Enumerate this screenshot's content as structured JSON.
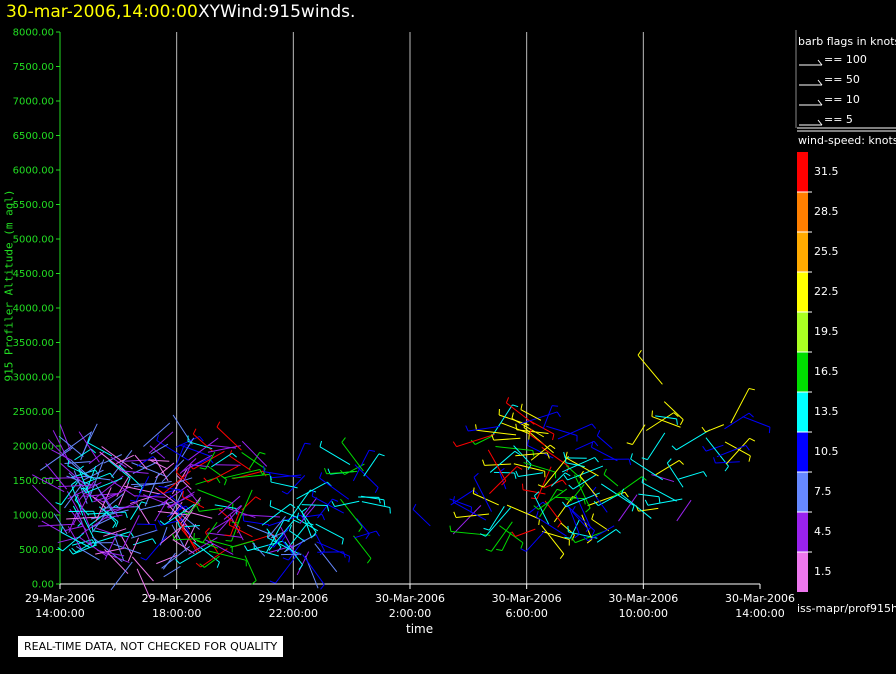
{
  "header": {
    "datetime": "30-mar-2006,14:00:00",
    "product": "XYWind:915winds."
  },
  "footer": {
    "qc_notice": "REAL-TIME DATA, NOT CHECKED FOR QUALITY",
    "source_path": "iss-mapr/prof915h"
  },
  "barb_legend": {
    "title": "barb flags in knots",
    "entries": [
      {
        "label": "== 100",
        "knots": 100
      },
      {
        "label": "== 50",
        "knots": 50
      },
      {
        "label": "== 10",
        "knots": 10
      },
      {
        "label": "== 5",
        "knots": 5
      }
    ]
  },
  "colorbar": {
    "title": "wind-speed: knots",
    "bins": [
      {
        "label": "31.5",
        "color": "#ff0000"
      },
      {
        "label": "28.5",
        "color": "#ff7f00"
      },
      {
        "label": "25.5",
        "color": "#ffaa00"
      },
      {
        "label": "22.5",
        "color": "#ffff00"
      },
      {
        "label": "19.5",
        "color": "#aaff22"
      },
      {
        "label": "16.5",
        "color": "#00dd00"
      },
      {
        "label": "13.5",
        "color": "#00ffff"
      },
      {
        "label": "10.5",
        "color": "#0000ff"
      },
      {
        "label": "7.5",
        "color": "#6688ff"
      },
      {
        "label": "4.5",
        "color": "#9922ee"
      },
      {
        "label": "1.5",
        "color": "#ee77ee"
      }
    ]
  },
  "chart_data": {
    "type": "scatter",
    "xlabel": "time",
    "ylabel": "915 Profiler Altitude (m agl)",
    "ylim": [
      0,
      8000
    ],
    "yticks": [
      "0.00",
      "500.00",
      "1000.00",
      "1500.00",
      "2000.00",
      "2500.00",
      "3000.00",
      "3500.00",
      "4000.00",
      "4500.00",
      "5000.00",
      "5500.00",
      "6000.00",
      "6500.00",
      "7000.00",
      "7500.00",
      "8000.00"
    ],
    "xlim_hours": [
      0,
      24
    ],
    "xticks": [
      {
        "date": "29-Mar-2006",
        "time": "14:00:00",
        "h": 0
      },
      {
        "date": "29-Mar-2006",
        "time": "18:00:00",
        "h": 4
      },
      {
        "date": "29-Mar-2006",
        "time": "22:00:00",
        "h": 8
      },
      {
        "date": "30-Mar-2006",
        "time": "2:00:00",
        "h": 12
      },
      {
        "date": "30-Mar-2006",
        "time": "6:00:00",
        "h": 16
      },
      {
        "date": "30-Mar-2006",
        "time": "10:00:00",
        "h": 20
      },
      {
        "date": "30-Mar-2006",
        "time": "14:00:00",
        "h": 24
      }
    ],
    "grid": "vertical",
    "clusters": [
      {
        "h0": 0.0,
        "h1": 1.2,
        "z0": 550,
        "z1": 2000,
        "count": 60,
        "speeds": [
          7.5,
          13.5,
          4.5
        ]
      },
      {
        "h0": 1.0,
        "h1": 2.6,
        "z0": 300,
        "z1": 2000,
        "count": 55,
        "speeds": [
          13.5,
          4.5,
          1.5,
          7.5
        ]
      },
      {
        "h0": 2.4,
        "h1": 4.6,
        "z0": 150,
        "z1": 2100,
        "count": 70,
        "speeds": [
          1.5,
          4.5,
          7.5,
          10.5
        ]
      },
      {
        "h0": 4.4,
        "h1": 6.6,
        "z0": 400,
        "z1": 2100,
        "count": 65,
        "speeds": [
          4.5,
          13.5,
          16.5,
          31.5
        ]
      },
      {
        "h0": 6.8,
        "h1": 8.9,
        "z0": 400,
        "z1": 1000,
        "count": 40,
        "speeds": [
          13.5,
          10.5,
          4.5,
          7.5
        ]
      },
      {
        "h0": 8.1,
        "h1": 8.7,
        "z0": 1000,
        "z1": 1800,
        "count": 8,
        "speeds": [
          13.5,
          10.5
        ]
      },
      {
        "h0": 9.6,
        "h1": 10.5,
        "z0": 650,
        "z1": 1800,
        "count": 18,
        "speeds": [
          16.5,
          13.5,
          10.5
        ]
      },
      {
        "h0": 12.6,
        "h1": 13.5,
        "z0": 500,
        "z1": 1500,
        "count": 4,
        "speeds": [
          10.5,
          4.5
        ]
      },
      {
        "h0": 14.6,
        "h1": 17.2,
        "z0": 700,
        "z1": 2400,
        "count": 60,
        "speeds": [
          22.5,
          16.5,
          10.5,
          31.5,
          13.5
        ]
      },
      {
        "h0": 17.2,
        "h1": 19.2,
        "z0": 600,
        "z1": 2000,
        "count": 35,
        "speeds": [
          22.5,
          16.5,
          10.5,
          13.5
        ]
      },
      {
        "h0": 19.7,
        "h1": 20.8,
        "z0": 2000,
        "z1": 3000,
        "count": 6,
        "speeds": [
          22.5,
          13.5,
          4.5
        ]
      },
      {
        "h0": 19.6,
        "h1": 21.4,
        "z0": 800,
        "z1": 1600,
        "count": 12,
        "speeds": [
          13.5,
          4.5,
          22.5
        ]
      },
      {
        "h0": 21.2,
        "h1": 23.5,
        "z0": 1700,
        "z1": 2500,
        "count": 12,
        "speeds": [
          13.5,
          10.5,
          22.5
        ]
      }
    ]
  }
}
